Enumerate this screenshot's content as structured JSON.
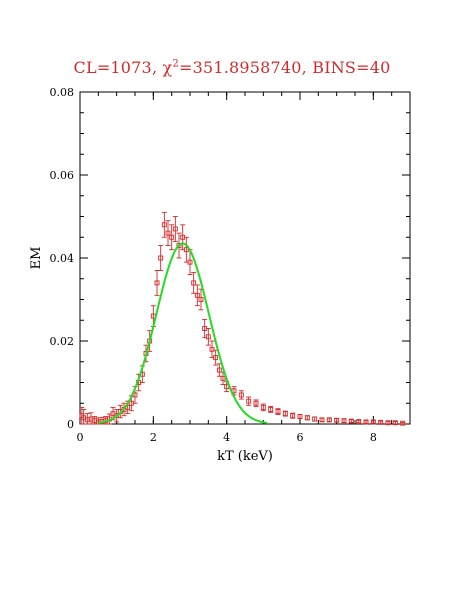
{
  "title": {
    "prefix": "CL=1073, ",
    "chi_symbol": "χ",
    "chi_exponent": "2",
    "suffix": "=351.8958740, BINS=40"
  },
  "colors": {
    "data": "#d62a2a",
    "model": "#22dd22",
    "axis": "#000000"
  },
  "chart_data": {
    "type": "scatter",
    "xlabel": "kT (keV)",
    "ylabel": "EM",
    "xlim": [
      0,
      9
    ],
    "ylim": [
      0,
      0.08
    ],
    "x_ticks": [
      0,
      2,
      4,
      6,
      8
    ],
    "x_tick_labels": [
      "0",
      "2",
      "4",
      "6",
      "8"
    ],
    "y_ticks": [
      0,
      0.02,
      0.04,
      0.06,
      0.08
    ],
    "y_tick_labels": [
      "0",
      "0.02",
      "0.04",
      "0.06",
      "0.08"
    ],
    "grid": false,
    "series": [
      {
        "kind": "points_with_errorbars",
        "x": [
          0.05,
          0.1,
          0.2,
          0.3,
          0.4,
          0.5,
          0.6,
          0.7,
          0.8,
          0.9,
          1.0,
          1.1,
          1.2,
          1.3,
          1.4,
          1.5,
          1.6,
          1.7,
          1.8,
          1.9,
          2.0,
          2.1,
          2.2,
          2.3,
          2.4,
          2.5,
          2.6,
          2.7,
          2.8,
          2.9,
          3.0,
          3.1,
          3.2,
          3.3,
          3.4,
          3.5,
          3.6,
          3.7,
          3.8,
          3.9,
          4.0,
          4.2,
          4.4,
          4.6,
          4.8,
          5.0,
          5.2,
          5.4,
          5.6,
          5.8,
          6.0,
          6.2,
          6.4,
          6.6,
          6.8,
          7.0,
          7.2,
          7.4,
          7.6,
          7.8,
          8.0,
          8.2,
          8.4,
          8.6,
          8.8
        ],
        "y": [
          0.002,
          0.0015,
          0.001,
          0.0012,
          0.0008,
          0.0005,
          0.0006,
          0.0008,
          0.0012,
          0.0025,
          0.002,
          0.003,
          0.0035,
          0.004,
          0.005,
          0.007,
          0.01,
          0.012,
          0.017,
          0.02,
          0.026,
          0.034,
          0.04,
          0.048,
          0.046,
          0.045,
          0.047,
          0.043,
          0.045,
          0.042,
          0.039,
          0.034,
          0.031,
          0.03,
          0.023,
          0.021,
          0.018,
          0.016,
          0.013,
          0.011,
          0.009,
          0.008,
          0.007,
          0.0055,
          0.005,
          0.004,
          0.0035,
          0.003,
          0.0025,
          0.002,
          0.0018,
          0.0015,
          0.0012,
          0.001,
          0.001,
          0.0009,
          0.0008,
          0.0007,
          0.0006,
          0.0005,
          0.0005,
          0.0004,
          0.0003,
          0.0003,
          0.0002
        ],
        "yerr": [
          0.002,
          0.002,
          0.0015,
          0.0015,
          0.001,
          0.001,
          0.001,
          0.001,
          0.0012,
          0.0015,
          0.0015,
          0.0015,
          0.0015,
          0.0015,
          0.0018,
          0.002,
          0.002,
          0.002,
          0.002,
          0.0025,
          0.0025,
          0.003,
          0.003,
          0.003,
          0.003,
          0.003,
          0.003,
          0.003,
          0.003,
          0.003,
          0.003,
          0.0025,
          0.0025,
          0.0025,
          0.0022,
          0.002,
          0.002,
          0.0018,
          0.0015,
          0.0015,
          0.0012,
          0.001,
          0.001,
          0.001,
          0.0008,
          0.0008,
          0.0007,
          0.0007,
          0.0006,
          0.0006,
          0.0005,
          0.0005,
          0.0005,
          0.0004,
          0.0004,
          0.0004,
          0.0004,
          0.0003,
          0.0003,
          0.0003,
          0.0003,
          0.0003,
          0.0003,
          0.0003,
          0.0002
        ]
      },
      {
        "kind": "model_curve",
        "peak_x": 2.8,
        "peak_y": 0.0435,
        "sigma": 0.72,
        "x_range": [
          0.5,
          5.1
        ]
      }
    ]
  }
}
